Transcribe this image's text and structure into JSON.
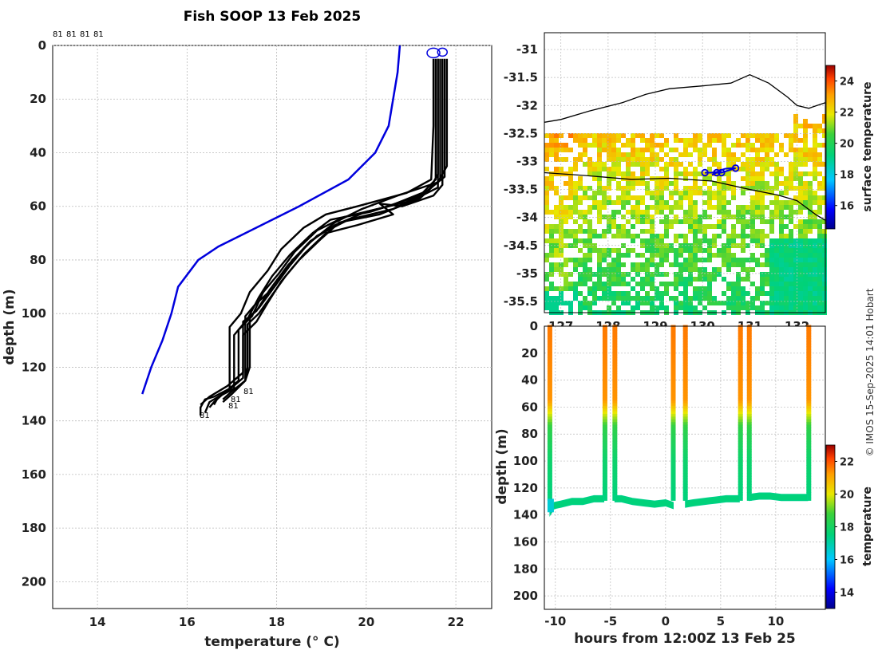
{
  "figure_title": "Fish SOOP 13 Feb 2025",
  "credit": "© IMOS 15-Sep-2025 14:01 Hobart",
  "profile_tags": [
    "81",
    "81",
    "81",
    "81"
  ],
  "cast_tags": [
    "81",
    "81",
    "81",
    "81"
  ],
  "chart_data": [
    {
      "type": "line",
      "name": "temperature-profiles",
      "xlabel": "temperature (° C)",
      "ylabel": "depth (m)",
      "xlim": [
        13,
        22.8
      ],
      "ylim": [
        210,
        0
      ],
      "xticks": [
        14,
        16,
        18,
        20,
        22
      ],
      "yticks": [
        0,
        20,
        40,
        60,
        80,
        100,
        120,
        140,
        160,
        180,
        200
      ],
      "reference_profile": {
        "color": "#0000dd",
        "points": [
          [
            20.75,
            0
          ],
          [
            20.7,
            10
          ],
          [
            20.6,
            20
          ],
          [
            20.5,
            30
          ],
          [
            20.2,
            40
          ],
          [
            19.6,
            50
          ],
          [
            18.5,
            60
          ],
          [
            17.3,
            70
          ],
          [
            16.7,
            75
          ],
          [
            16.25,
            80
          ],
          [
            15.8,
            90
          ],
          [
            15.65,
            100
          ],
          [
            15.45,
            110
          ],
          [
            15.2,
            120
          ],
          [
            15.1,
            125
          ],
          [
            15.0,
            130
          ]
        ]
      },
      "casts": [
        [
          [
            21.5,
            5
          ],
          [
            21.5,
            30
          ],
          [
            21.45,
            50
          ],
          [
            20.9,
            55
          ],
          [
            19.8,
            60
          ],
          [
            19.1,
            63
          ],
          [
            18.6,
            68
          ],
          [
            18.1,
            76
          ],
          [
            17.8,
            84
          ],
          [
            17.4,
            92
          ],
          [
            17.2,
            100
          ],
          [
            16.95,
            105
          ],
          [
            16.95,
            128
          ],
          [
            16.6,
            131
          ],
          [
            16.4,
            132
          ],
          [
            16.3,
            135
          ],
          [
            16.3,
            138
          ]
        ],
        [
          [
            21.55,
            5
          ],
          [
            21.55,
            30
          ],
          [
            21.55,
            50
          ],
          [
            21.2,
            56
          ],
          [
            20.1,
            62
          ],
          [
            19.2,
            65
          ],
          [
            18.8,
            70
          ],
          [
            18.3,
            78
          ],
          [
            17.9,
            86
          ],
          [
            17.6,
            94
          ],
          [
            17.35,
            102
          ],
          [
            17.05,
            108
          ],
          [
            17.05,
            128
          ],
          [
            16.7,
            131
          ],
          [
            16.5,
            133
          ],
          [
            16.4,
            137
          ]
        ],
        [
          [
            21.6,
            5
          ],
          [
            21.6,
            30
          ],
          [
            21.6,
            48
          ],
          [
            21.4,
            54
          ],
          [
            20.5,
            60
          ],
          [
            19.5,
            64
          ],
          [
            18.9,
            69
          ],
          [
            18.4,
            77
          ],
          [
            18.05,
            85
          ],
          [
            17.7,
            92
          ],
          [
            17.45,
            101
          ],
          [
            17.15,
            106
          ],
          [
            17.15,
            125
          ],
          [
            16.8,
            130
          ],
          [
            16.6,
            133
          ],
          [
            16.5,
            135
          ]
        ],
        [
          [
            21.65,
            5
          ],
          [
            21.65,
            30
          ],
          [
            21.65,
            50
          ],
          [
            21.2,
            57
          ],
          [
            20.3,
            63
          ],
          [
            19.4,
            66
          ],
          [
            19.0,
            72
          ],
          [
            18.5,
            80
          ],
          [
            18.1,
            88
          ],
          [
            17.8,
            96
          ],
          [
            17.55,
            103
          ],
          [
            17.25,
            108
          ],
          [
            17.25,
            124
          ],
          [
            16.9,
            129
          ],
          [
            16.7,
            131
          ],
          [
            16.6,
            134
          ]
        ],
        [
          [
            21.7,
            5
          ],
          [
            21.7,
            30
          ],
          [
            21.7,
            52
          ],
          [
            21.5,
            56
          ],
          [
            20.8,
            60
          ],
          [
            20.3,
            59
          ],
          [
            20.6,
            63
          ],
          [
            19.8,
            67
          ],
          [
            19.1,
            70
          ],
          [
            18.6,
            78
          ],
          [
            18.2,
            86
          ],
          [
            17.9,
            93
          ],
          [
            17.6,
            100
          ],
          [
            17.35,
            104
          ],
          [
            17.35,
            120
          ],
          [
            17.3,
            125
          ],
          [
            17.0,
            130
          ],
          [
            16.8,
            133
          ]
        ],
        [
          [
            21.75,
            5
          ],
          [
            21.75,
            30
          ],
          [
            21.75,
            49
          ],
          [
            21.3,
            55
          ],
          [
            20.6,
            61
          ],
          [
            19.6,
            65
          ],
          [
            18.9,
            71
          ],
          [
            18.35,
            80
          ],
          [
            17.95,
            90
          ],
          [
            17.5,
            97
          ],
          [
            17.3,
            101
          ],
          [
            17.3,
            125
          ],
          [
            17.0,
            129
          ],
          [
            16.8,
            132
          ]
        ],
        [
          [
            21.8,
            5
          ],
          [
            21.8,
            30
          ],
          [
            21.8,
            45
          ],
          [
            21.6,
            51
          ],
          [
            20.7,
            56
          ],
          [
            19.9,
            61
          ],
          [
            19.3,
            66
          ],
          [
            18.7,
            74
          ],
          [
            18.3,
            82
          ],
          [
            17.95,
            90
          ],
          [
            17.6,
            98
          ],
          [
            17.4,
            101
          ],
          [
            17.4,
            120
          ],
          [
            17.3,
            125
          ],
          [
            17.1,
            128
          ]
        ],
        [
          [
            21.6,
            5
          ],
          [
            21.6,
            30
          ],
          [
            21.6,
            53
          ],
          [
            21.0,
            58
          ],
          [
            20.0,
            62
          ],
          [
            19.3,
            67
          ],
          [
            18.75,
            73
          ],
          [
            18.25,
            82
          ],
          [
            17.85,
            91
          ],
          [
            17.55,
            99
          ],
          [
            17.25,
            103
          ],
          [
            17.25,
            122
          ],
          [
            16.9,
            127
          ],
          [
            16.5,
            131
          ],
          [
            16.3,
            134
          ]
        ]
      ]
    },
    {
      "type": "heatmap",
      "name": "surface-temperature-map",
      "xlim": [
        126.65,
        132.6
      ],
      "ylim": [
        -35.7,
        -30.7
      ],
      "xticks": [
        127,
        128,
        129,
        130,
        131,
        132
      ],
      "yticks": [
        -31,
        -31.5,
        -32,
        -32.5,
        -33,
        -33.5,
        -34,
        -34.5,
        -35,
        -35.5
      ],
      "colorbar_label": "surface temperature",
      "colorbar_ticks": [
        16,
        18,
        20,
        22,
        24
      ],
      "colorbar_range": [
        14.5,
        25
      ],
      "coastline": [
        [
          126.65,
          -32.3
        ],
        [
          127.0,
          -32.25
        ],
        [
          127.6,
          -32.1
        ],
        [
          128.3,
          -31.95
        ],
        [
          128.8,
          -31.8
        ],
        [
          129.3,
          -31.7
        ],
        [
          130.0,
          -31.65
        ],
        [
          130.6,
          -31.6
        ],
        [
          131.0,
          -31.45
        ],
        [
          131.4,
          -31.6
        ],
        [
          131.8,
          -31.85
        ],
        [
          132.0,
          -32.0
        ],
        [
          132.25,
          -32.05
        ],
        [
          132.6,
          -31.95
        ]
      ],
      "route": [
        [
          126.65,
          -33.2
        ],
        [
          127.5,
          -33.25
        ],
        [
          128.5,
          -33.32
        ],
        [
          129.3,
          -33.3
        ],
        [
          130.2,
          -33.35
        ],
        [
          131.0,
          -33.5
        ],
        [
          131.6,
          -33.6
        ],
        [
          132.0,
          -33.7
        ],
        [
          132.4,
          -33.95
        ],
        [
          132.6,
          -34.05
        ]
      ],
      "track_points": [
        [
          130.05,
          -33.2
        ],
        [
          130.2,
          -33.2
        ],
        [
          130.28,
          -33.19
        ],
        [
          130.34,
          -33.18
        ],
        [
          130.4,
          -33.15
        ],
        [
          130.48,
          -33.13
        ],
        [
          130.62,
          -33.12
        ],
        [
          130.7,
          -33.12
        ],
        [
          130.4,
          -33.2
        ],
        [
          130.3,
          -33.2
        ],
        [
          130.2,
          -33.24
        ],
        [
          130.3,
          -33.19
        ],
        [
          130.4,
          -33.18
        ]
      ]
    },
    {
      "type": "scatter",
      "name": "depth-time-section",
      "xlabel": "hours from 12:00Z 13 Feb 25",
      "ylabel": "depth (m)",
      "xlim": [
        -11,
        14.5
      ],
      "ylim": [
        210,
        0
      ],
      "xticks": [
        -10,
        -5,
        0,
        5,
        10
      ],
      "yticks": [
        0,
        20,
        40,
        60,
        80,
        100,
        120,
        140,
        160,
        180,
        200
      ],
      "colorbar_label": "temperature",
      "colorbar_ticks": [
        14,
        16,
        18,
        20,
        22
      ],
      "colorbar_range": [
        13,
        23
      ],
      "casts_hours": [
        -10.5,
        -5.5,
        -4.6,
        0.7,
        1.8,
        6.8,
        7.6,
        13.0
      ],
      "bottom_segments": [
        [
          [
            -10.5,
            138
          ],
          [
            -10.1,
            133
          ],
          [
            -9.5,
            132
          ],
          [
            -8.5,
            130
          ],
          [
            -7.5,
            130
          ],
          [
            -6.5,
            128
          ],
          [
            -5.6,
            128
          ]
        ],
        [
          [
            -4.6,
            128
          ],
          [
            -4.0,
            128
          ],
          [
            -3.0,
            130
          ],
          [
            -2.0,
            131
          ],
          [
            -1.0,
            132
          ],
          [
            0.0,
            131
          ],
          [
            0.7,
            133
          ]
        ],
        [
          [
            1.8,
            132
          ],
          [
            2.5,
            131
          ],
          [
            3.5,
            130
          ],
          [
            4.5,
            129
          ],
          [
            5.5,
            128
          ],
          [
            6.7,
            128
          ]
        ],
        [
          [
            7.6,
            127
          ],
          [
            8.5,
            126
          ],
          [
            9.5,
            126
          ],
          [
            10.5,
            127
          ],
          [
            11.5,
            127
          ],
          [
            12.9,
            127
          ]
        ]
      ]
    }
  ]
}
